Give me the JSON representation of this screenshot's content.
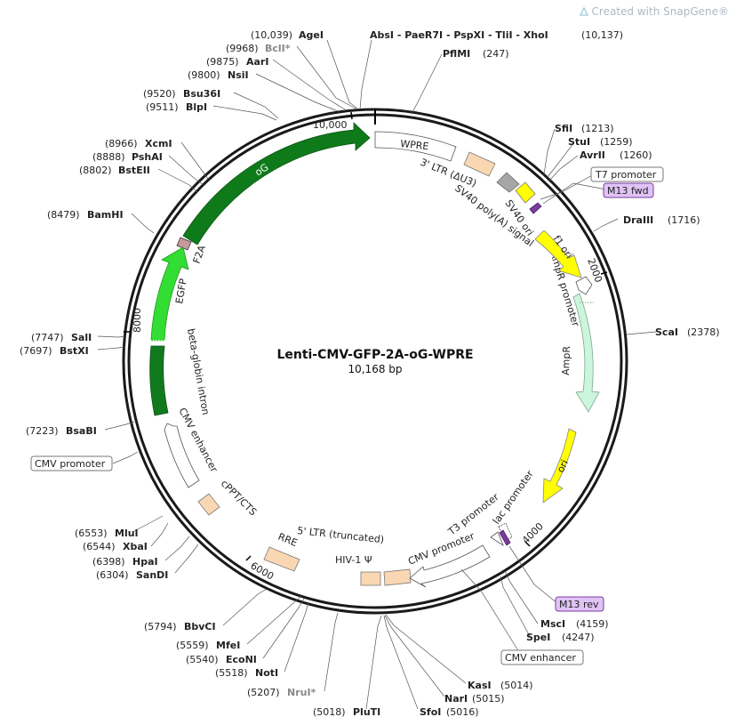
{
  "watermark": "Created with SnapGene®",
  "plasmid": {
    "name": "Lenti-CMV-GFP-2A-oG-WPRE",
    "size": "10,168 bp"
  },
  "ticks": [
    "10,000",
    "2000",
    "4000",
    "6000",
    "8000"
  ],
  "sites": [
    {
      "name": "AgeI",
      "pos": "(10,039)"
    },
    {
      "name": "BclI*",
      "pos": "(9968)",
      "grey": true
    },
    {
      "name": "AarI",
      "pos": "(9875)"
    },
    {
      "name": "NsiI",
      "pos": "(9800)"
    },
    {
      "name": "Bsu36I",
      "pos": "(9520)"
    },
    {
      "name": "BlpI",
      "pos": "(9511)"
    },
    {
      "name": "XcmI",
      "pos": "(8966)"
    },
    {
      "name": "PshAI",
      "pos": "(8888)"
    },
    {
      "name": "BstEII",
      "pos": "(8802)"
    },
    {
      "name": "BamHI",
      "pos": "(8479)"
    },
    {
      "name": "SalI",
      "pos": "(7747)"
    },
    {
      "name": "BstXI",
      "pos": "(7697)"
    },
    {
      "name": "BsaBI",
      "pos": "(7223)"
    },
    {
      "name": "MluI",
      "pos": "(6553)"
    },
    {
      "name": "XbaI",
      "pos": "(6544)"
    },
    {
      "name": "HpaI",
      "pos": "(6398)"
    },
    {
      "name": "SanDI",
      "pos": "(6304)"
    },
    {
      "name": "BbvCI",
      "pos": "(5794)"
    },
    {
      "name": "MfeI",
      "pos": "(5559)"
    },
    {
      "name": "EcoNI",
      "pos": "(5540)"
    },
    {
      "name": "NotI",
      "pos": "(5518)"
    },
    {
      "name": "NruI*",
      "pos": "(5207)",
      "grey": true
    },
    {
      "name": "PluTI",
      "pos": "(5018)"
    },
    {
      "name": "SfoI",
      "pos": "(5016)"
    },
    {
      "name": "NarI",
      "pos": "(5015)"
    },
    {
      "name": "KasI",
      "pos": "(5014)"
    },
    {
      "name": "SpeI",
      "pos": "(4247)"
    },
    {
      "name": "MscI",
      "pos": "(4159)"
    },
    {
      "name": "ScaI",
      "pos": "(2378)"
    },
    {
      "name": "DraIII",
      "pos": "(1716)"
    },
    {
      "name": "AvrII",
      "pos": "(1260)"
    },
    {
      "name": "StuI",
      "pos": "(1259)"
    },
    {
      "name": "SfiI",
      "pos": "(1213)"
    },
    {
      "name": "PflMI",
      "pos": "(247)"
    },
    {
      "name": "AbsI - PaeR7I - PspXI - TliI - XhoI",
      "pos": "(10,137)"
    }
  ],
  "boxed": [
    {
      "name": "T7 promoter",
      "kind": "promoter"
    },
    {
      "name": "M13 fwd",
      "kind": "primer"
    },
    {
      "name": "CMV promoter",
      "kind": "promoter"
    },
    {
      "name": "M13 rev",
      "kind": "primer"
    },
    {
      "name": "CMV enhancer",
      "kind": "promoter"
    }
  ],
  "features": [
    {
      "name": "WPRE"
    },
    {
      "name": "3' LTR (ΔU3)"
    },
    {
      "name": "SV40 poly(A) signal"
    },
    {
      "name": "SV40 ori"
    },
    {
      "name": "f1 ori"
    },
    {
      "name": "AmpR promoter"
    },
    {
      "name": "AmpR"
    },
    {
      "name": "ori"
    },
    {
      "name": "lac promoter"
    },
    {
      "name": "T3 promoter"
    },
    {
      "name": "CMV promoter"
    },
    {
      "name": "HIV-1 Ψ"
    },
    {
      "name": "5' LTR (truncated)"
    },
    {
      "name": "RRE"
    },
    {
      "name": "cPPT/CTS"
    },
    {
      "name": "CMV enhancer"
    },
    {
      "name": "beta-globin intron"
    },
    {
      "name": "EGFP"
    },
    {
      "name": "F2A"
    },
    {
      "name": "oG"
    }
  ],
  "colors": {
    "oG": "#0f7a1a",
    "EGFP": "#33dd33",
    "intron": "#117a1f",
    "ori": "#ffff00",
    "AmpR": "#ccf5dd",
    "LTR": "#fad7b3",
    "SV40": "#a6a6a6",
    "primerFill": "#e0c3f5",
    "primerBorder": "#7a3c9c",
    "F2A": "#c79a9a"
  }
}
